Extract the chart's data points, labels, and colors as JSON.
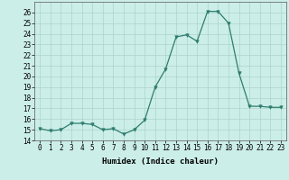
{
  "xlabel": "Humidex (Indice chaleur)",
  "x": [
    0,
    1,
    2,
    3,
    4,
    5,
    6,
    7,
    8,
    9,
    10,
    11,
    12,
    13,
    14,
    15,
    16,
    17,
    18,
    19,
    20,
    21,
    22,
    23
  ],
  "y": [
    15.1,
    14.9,
    15.0,
    15.6,
    15.6,
    15.5,
    15.0,
    15.1,
    14.6,
    15.0,
    15.9,
    19.0,
    20.7,
    23.7,
    23.9,
    23.3,
    26.1,
    26.1,
    25.0,
    20.3,
    17.2,
    17.2,
    17.1,
    17.1
  ],
  "ylim": [
    14,
    27
  ],
  "yticks": [
    14,
    15,
    16,
    17,
    18,
    19,
    20,
    21,
    22,
    23,
    24,
    25,
    26
  ],
  "xlim": [
    -0.5,
    23.5
  ],
  "line_color": "#2e7d6e",
  "bg_color": "#cceee8",
  "grid_color": "#aad4cc",
  "label_fontsize": 6.5,
  "tick_fontsize": 5.5
}
